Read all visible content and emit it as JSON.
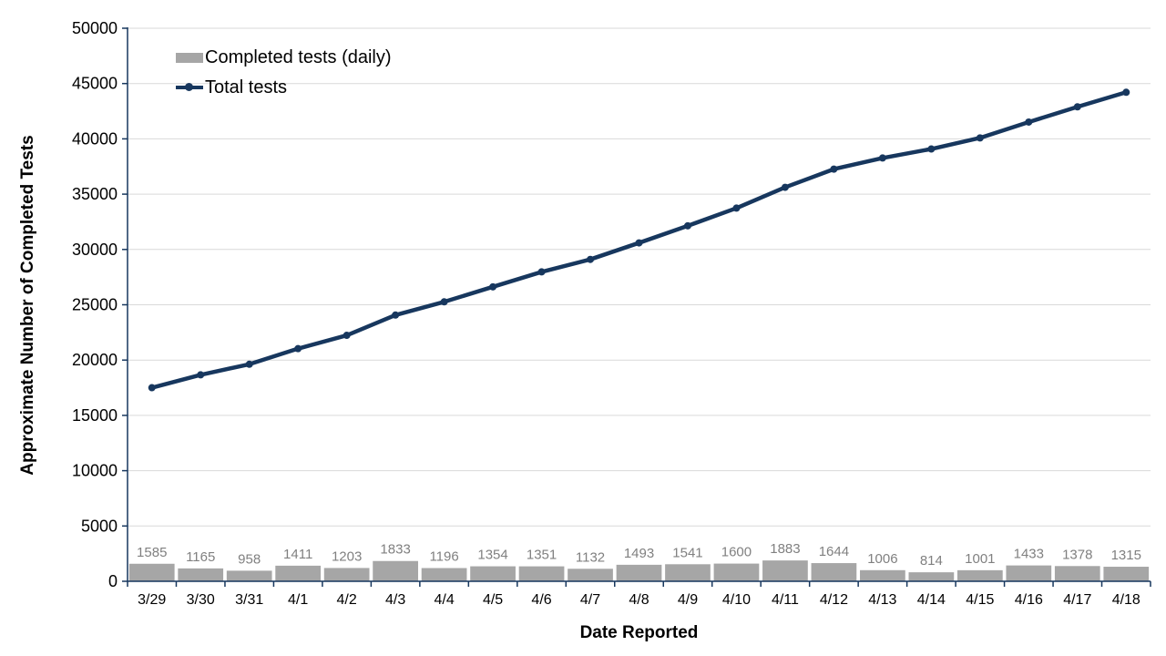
{
  "chart_data": {
    "type": "combo",
    "title": "",
    "xlabel": "Date Reported",
    "ylabel": "Approximate Number of Completed Tests",
    "ylim": [
      0,
      50000
    ],
    "ytick_step": 5000,
    "grid": "horizontal",
    "legend_position": "inside-top-left",
    "categories": [
      "3/29",
      "3/30",
      "3/31",
      "4/1",
      "4/2",
      "4/3",
      "4/4",
      "4/5",
      "4/6",
      "4/7",
      "4/8",
      "4/9",
      "4/10",
      "4/11",
      "4/12",
      "4/13",
      "4/14",
      "4/15",
      "4/16",
      "4/17",
      "4/18"
    ],
    "series": [
      {
        "name": "Completed tests (daily)",
        "type": "bar",
        "color": "#a6a6a6",
        "data_labels": true,
        "values": [
          1585,
          1165,
          958,
          1411,
          1203,
          1833,
          1196,
          1354,
          1351,
          1132,
          1493,
          1541,
          1600,
          1883,
          1644,
          1006,
          814,
          1001,
          1433,
          1378,
          1315
        ]
      },
      {
        "name": "Total tests",
        "type": "line",
        "color": "#17375e",
        "marker": "circle",
        "values": [
          17500,
          18665,
          19623,
          21034,
          22237,
          24070,
          25266,
          26620,
          27971,
          29103,
          30596,
          32137,
          33737,
          35620,
          37264,
          38270,
          39084,
          40085,
          41518,
          42896,
          44211
        ]
      }
    ],
    "colors": {
      "grid": "#d9d9d9",
      "axis": "#17375e",
      "text": "#000000",
      "bar_label": "#808080",
      "background": "#ffffff"
    }
  }
}
